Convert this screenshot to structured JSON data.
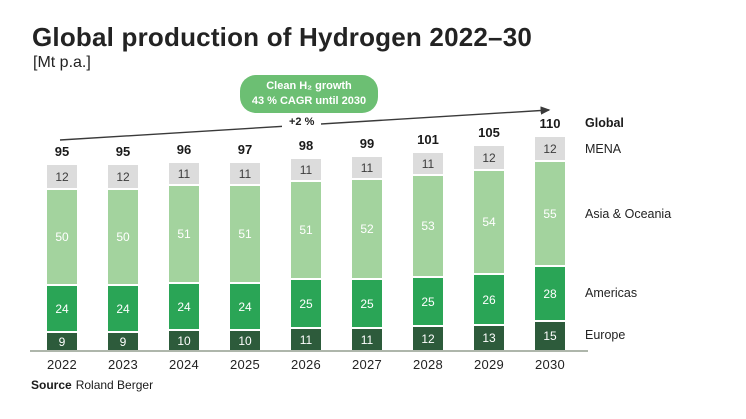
{
  "badge": {
    "line1": "Clean H₂ growth",
    "line2": "43 % CAGR until 2030",
    "color": "#6cbf73"
  },
  "growth_annotation": "+2 %",
  "source": {
    "label": "Source",
    "text": "Roland Berger"
  },
  "legend_note": "right-hand labels derive from chart_data series names",
  "chart_data": {
    "type": "bar",
    "stacked": true,
    "title": "Global production of Hydrogen 2022–30",
    "unit_label": "[Mt p.a.]",
    "categories": [
      "2022",
      "2023",
      "2024",
      "2025",
      "2026",
      "2027",
      "2028",
      "2029",
      "2030"
    ],
    "series": [
      {
        "name": "Europe",
        "color": "#2d5b3b",
        "label_color": "#ffffff",
        "values": [
          9,
          9,
          10,
          10,
          11,
          11,
          12,
          13,
          15
        ]
      },
      {
        "name": "Americas",
        "color": "#2aa556",
        "label_color": "#ffffff",
        "values": [
          24,
          24,
          24,
          24,
          25,
          25,
          25,
          26,
          28
        ]
      },
      {
        "name": "Asia & Oceania",
        "color": "#a3d39e",
        "label_color": "#ffffff",
        "values": [
          50,
          50,
          51,
          51,
          51,
          52,
          53,
          54,
          55
        ]
      },
      {
        "name": "MENA",
        "color": "#dcdcdc",
        "label_color": "#3c3c3c",
        "values": [
          12,
          12,
          11,
          11,
          11,
          11,
          11,
          12,
          12
        ]
      }
    ],
    "totals": [
      95,
      95,
      96,
      97,
      98,
      99,
      101,
      105,
      110
    ],
    "totals_label": "Global",
    "annotations": [
      "Clean H₂ growth 43 % CAGR until 2030",
      "+2 % arrow from 2022 to 2030"
    ],
    "legend_position": "right",
    "grid": false,
    "ylim": [
      0,
      110
    ]
  }
}
